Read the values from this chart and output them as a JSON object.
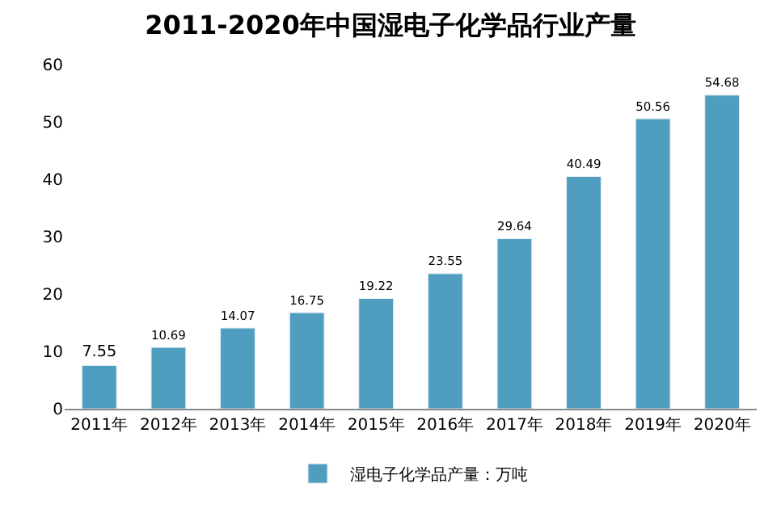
{
  "chart_data": {
    "type": "bar",
    "title": "2011-2020年中国湿电子化学品行业产量",
    "categories": [
      "2011年",
      "2012年",
      "2013年",
      "2014年",
      "2015年",
      "2016年",
      "2017年",
      "2018年",
      "2019年",
      "2020年"
    ],
    "series": [
      {
        "name": "湿电子化学品产量：万吨",
        "color": "#4f9ec0",
        "values": [
          7.55,
          10.69,
          14.07,
          16.75,
          19.22,
          23.55,
          29.64,
          40.49,
          50.56,
          54.68
        ]
      }
    ],
    "ylim": [
      0,
      60
    ],
    "yticks": [
      0,
      10,
      20,
      30,
      40,
      50,
      60
    ],
    "grid": false,
    "legend": "bottom",
    "data_labels": true
  }
}
